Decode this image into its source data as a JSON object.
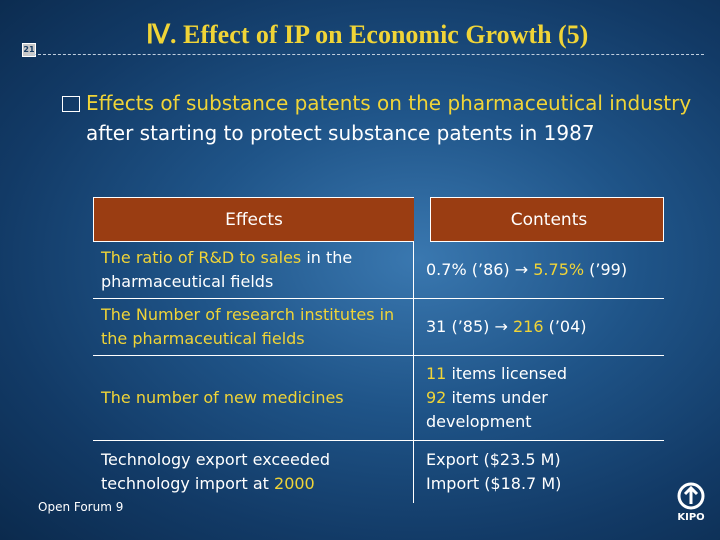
{
  "slide": {
    "number": "21",
    "title": "Ⅳ. Effect of IP on Economic Growth (5)",
    "bullet": {
      "part1": "Effects of substance patents on the pharmaceutical industry",
      "part2": " after starting to protect substance patents in 1987"
    },
    "table": {
      "headers": [
        "Effects",
        "Contents"
      ],
      "rows": [
        {
          "effect": {
            "hl": "The ratio of R&D to sales",
            "rest": " in the pharmaceutical fields"
          },
          "content": {
            "a": "0.7% (’86) ",
            "arrow": "→",
            "hl": " 5.75%",
            "b": " (’99)"
          }
        },
        {
          "effect": {
            "hl": "The Number of research institutes in the pharmaceutical fields"
          },
          "content": {
            "a": "31 (’85) ",
            "arrow": "→",
            "hl": " 216",
            "b": " (’04)"
          }
        },
        {
          "effect": {
            "hl": "The number of new medicines"
          },
          "content": {
            "l1_hl": "11",
            "l1_rest": " items licensed",
            "l2_hl": "92",
            "l2_rest": " items under development"
          }
        },
        {
          "effect": {
            "text": "Technology export exceeded technology import at ",
            "hl": "2000"
          },
          "content": {
            "l1": "Export ($23.5 M)",
            "l2": "Import ($18.7 M)"
          }
        }
      ]
    },
    "footer": "Open Forum 9",
    "logo_text": "KIPO"
  },
  "colors": {
    "accent_yellow": "#f0d437",
    "header_fill": "#9a3d12",
    "background": "#1f5488"
  }
}
